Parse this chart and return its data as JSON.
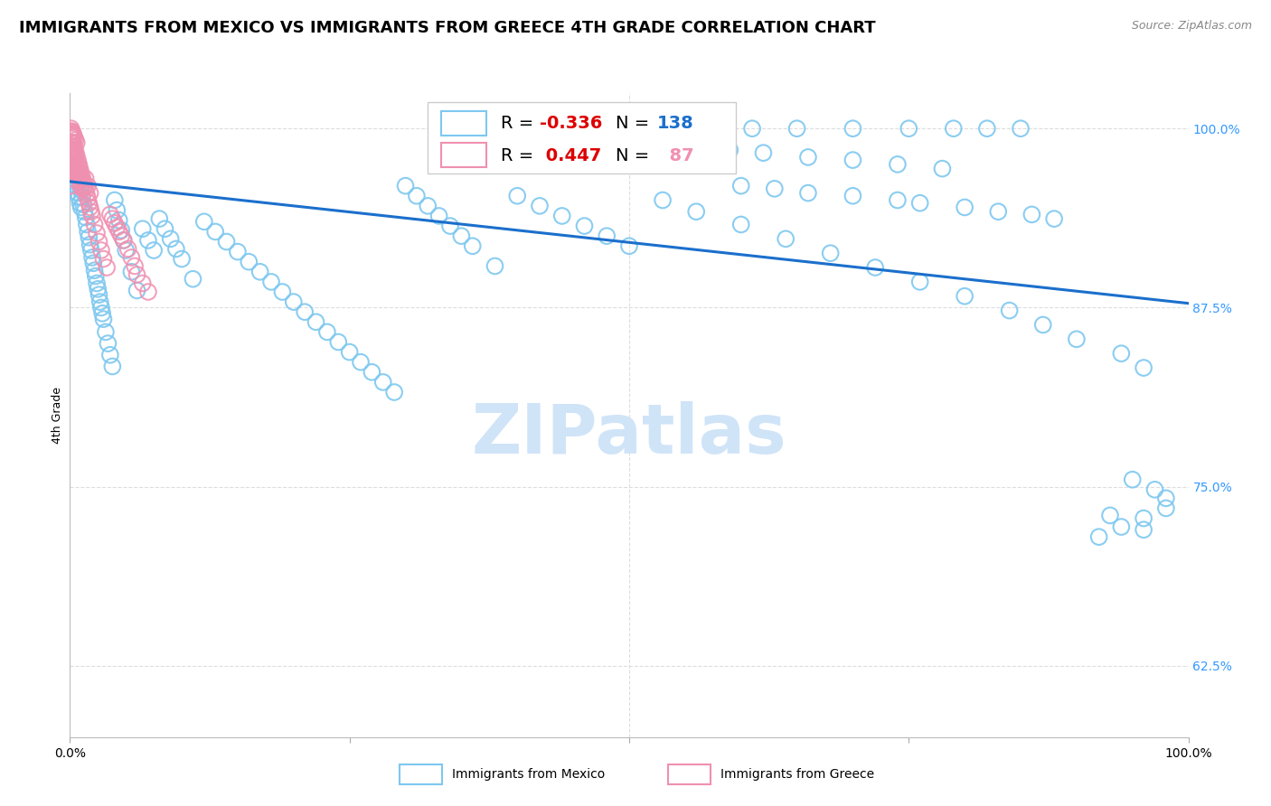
{
  "title": "IMMIGRANTS FROM MEXICO VS IMMIGRANTS FROM GREECE 4TH GRADE CORRELATION CHART",
  "source_text": "Source: ZipAtlas.com",
  "ylabel": "4th Grade",
  "y_labels_right": [
    "100.0%",
    "87.5%",
    "75.0%",
    "62.5%"
  ],
  "y_label_right_positions": [
    1.0,
    0.875,
    0.75,
    0.625
  ],
  "legend_label_blue": "Immigrants from Mexico",
  "legend_label_pink": "Immigrants from Greece",
  "blue_color": "#7EC8F0",
  "blue_line_color": "#1B6FCC",
  "pink_color": "#F090B0",
  "right_label_color": "#3399FF",
  "watermark_color": "#D0E4F8",
  "grid_color": "#DDDDDD",
  "xlim": [
    0.0,
    1.0
  ],
  "ylim": [
    0.575,
    1.025
  ],
  "blue_trend_y_start": 0.963,
  "blue_trend_y_end": 0.878,
  "title_fontsize": 13,
  "axis_label_fontsize": 9,
  "tick_label_fontsize": 10,
  "watermark_fontsize": 55,
  "legend_fontsize": 14,
  "blue_scatter_x": [
    0.001,
    0.001,
    0.001,
    0.002,
    0.002,
    0.003,
    0.003,
    0.003,
    0.004,
    0.004,
    0.005,
    0.005,
    0.006,
    0.006,
    0.007,
    0.007,
    0.008,
    0.008,
    0.009,
    0.009,
    0.01,
    0.01,
    0.011,
    0.012,
    0.013,
    0.014,
    0.015,
    0.016,
    0.017,
    0.018,
    0.019,
    0.02,
    0.021,
    0.022,
    0.023,
    0.024,
    0.025,
    0.026,
    0.027,
    0.028,
    0.029,
    0.03,
    0.032,
    0.034,
    0.036,
    0.038,
    0.04,
    0.042,
    0.044,
    0.046,
    0.048,
    0.05,
    0.055,
    0.06,
    0.065,
    0.07,
    0.075,
    0.08,
    0.085,
    0.09,
    0.095,
    0.1,
    0.11,
    0.12,
    0.13,
    0.14,
    0.15,
    0.16,
    0.17,
    0.18,
    0.19,
    0.2,
    0.21,
    0.22,
    0.23,
    0.24,
    0.25,
    0.26,
    0.27,
    0.28,
    0.29,
    0.3,
    0.31,
    0.32,
    0.33,
    0.34,
    0.35,
    0.36,
    0.38,
    0.4,
    0.42,
    0.44,
    0.46,
    0.48,
    0.5,
    0.53,
    0.56,
    0.6,
    0.64,
    0.68,
    0.72,
    0.76,
    0.8,
    0.84,
    0.87,
    0.9,
    0.94,
    0.96,
    0.5,
    0.54,
    0.57,
    0.61,
    0.65,
    0.7,
    0.75,
    0.79,
    0.82,
    0.85,
    0.53,
    0.56,
    0.59,
    0.62,
    0.66,
    0.7,
    0.74,
    0.78,
    0.6,
    0.63,
    0.66,
    0.7,
    0.74,
    0.76,
    0.8,
    0.83,
    0.86,
    0.88,
    0.93,
    0.96,
    0.95,
    0.97,
    0.98,
    0.98,
    0.96,
    0.94,
    0.92
  ],
  "blue_scatter_y": [
    0.995,
    0.98,
    0.97,
    0.99,
    0.975,
    0.985,
    0.965,
    0.975,
    0.97,
    0.98,
    0.968,
    0.975,
    0.96,
    0.972,
    0.955,
    0.968,
    0.952,
    0.963,
    0.948,
    0.96,
    0.945,
    0.957,
    0.952,
    0.947,
    0.942,
    0.938,
    0.933,
    0.928,
    0.924,
    0.919,
    0.915,
    0.91,
    0.906,
    0.901,
    0.897,
    0.892,
    0.888,
    0.884,
    0.879,
    0.875,
    0.871,
    0.867,
    0.858,
    0.85,
    0.842,
    0.834,
    0.95,
    0.943,
    0.936,
    0.929,
    0.922,
    0.915,
    0.9,
    0.887,
    0.93,
    0.922,
    0.915,
    0.937,
    0.93,
    0.923,
    0.916,
    0.909,
    0.895,
    0.935,
    0.928,
    0.921,
    0.914,
    0.907,
    0.9,
    0.893,
    0.886,
    0.879,
    0.872,
    0.865,
    0.858,
    0.851,
    0.844,
    0.837,
    0.83,
    0.823,
    0.816,
    0.96,
    0.953,
    0.946,
    0.939,
    0.932,
    0.925,
    0.918,
    0.904,
    0.953,
    0.946,
    0.939,
    0.932,
    0.925,
    0.918,
    0.95,
    0.942,
    0.933,
    0.923,
    0.913,
    0.903,
    0.893,
    0.883,
    0.873,
    0.863,
    0.853,
    0.843,
    0.833,
    1.0,
    1.0,
    1.0,
    1.0,
    1.0,
    1.0,
    1.0,
    1.0,
    1.0,
    1.0,
    0.99,
    0.988,
    0.985,
    0.983,
    0.98,
    0.978,
    0.975,
    0.972,
    0.96,
    0.958,
    0.955,
    0.953,
    0.95,
    0.948,
    0.945,
    0.942,
    0.94,
    0.937,
    0.73,
    0.72,
    0.755,
    0.748,
    0.742,
    0.735,
    0.728,
    0.722,
    0.715
  ],
  "pink_scatter_x": [
    0.001,
    0.001,
    0.001,
    0.001,
    0.001,
    0.001,
    0.001,
    0.001,
    0.002,
    0.002,
    0.002,
    0.002,
    0.002,
    0.002,
    0.003,
    0.003,
    0.003,
    0.003,
    0.003,
    0.004,
    0.004,
    0.004,
    0.004,
    0.005,
    0.005,
    0.005,
    0.005,
    0.006,
    0.006,
    0.006,
    0.007,
    0.007,
    0.007,
    0.008,
    0.008,
    0.008,
    0.009,
    0.009,
    0.01,
    0.01,
    0.01,
    0.011,
    0.011,
    0.012,
    0.012,
    0.013,
    0.014,
    0.015,
    0.016,
    0.017,
    0.018,
    0.019,
    0.02,
    0.022,
    0.024,
    0.026,
    0.028,
    0.03,
    0.033,
    0.002,
    0.003,
    0.004,
    0.005,
    0.006,
    0.014,
    0.016,
    0.018,
    0.036,
    0.038,
    0.04,
    0.042,
    0.044,
    0.046,
    0.048,
    0.052,
    0.055,
    0.058,
    0.06,
    0.065,
    0.07,
    0.001,
    0.001,
    0.002,
    0.002,
    0.003
  ],
  "pink_scatter_y": [
    0.995,
    0.99,
    0.985,
    0.98,
    0.975,
    0.97,
    0.965,
    0.96,
    0.993,
    0.988,
    0.983,
    0.978,
    0.973,
    0.968,
    0.99,
    0.985,
    0.98,
    0.975,
    0.97,
    0.987,
    0.982,
    0.977,
    0.972,
    0.984,
    0.979,
    0.974,
    0.969,
    0.981,
    0.976,
    0.971,
    0.978,
    0.973,
    0.968,
    0.975,
    0.97,
    0.965,
    0.972,
    0.967,
    0.969,
    0.964,
    0.959,
    0.966,
    0.961,
    0.963,
    0.958,
    0.96,
    0.957,
    0.954,
    0.951,
    0.948,
    0.945,
    0.942,
    0.939,
    0.933,
    0.927,
    0.921,
    0.915,
    0.909,
    0.903,
    0.998,
    0.996,
    0.994,
    0.992,
    0.99,
    0.965,
    0.96,
    0.955,
    0.94,
    0.937,
    0.934,
    0.931,
    0.928,
    0.925,
    0.922,
    0.916,
    0.91,
    0.904,
    0.898,
    0.892,
    0.886,
    1.0,
    0.998,
    0.997,
    0.996,
    0.995
  ]
}
